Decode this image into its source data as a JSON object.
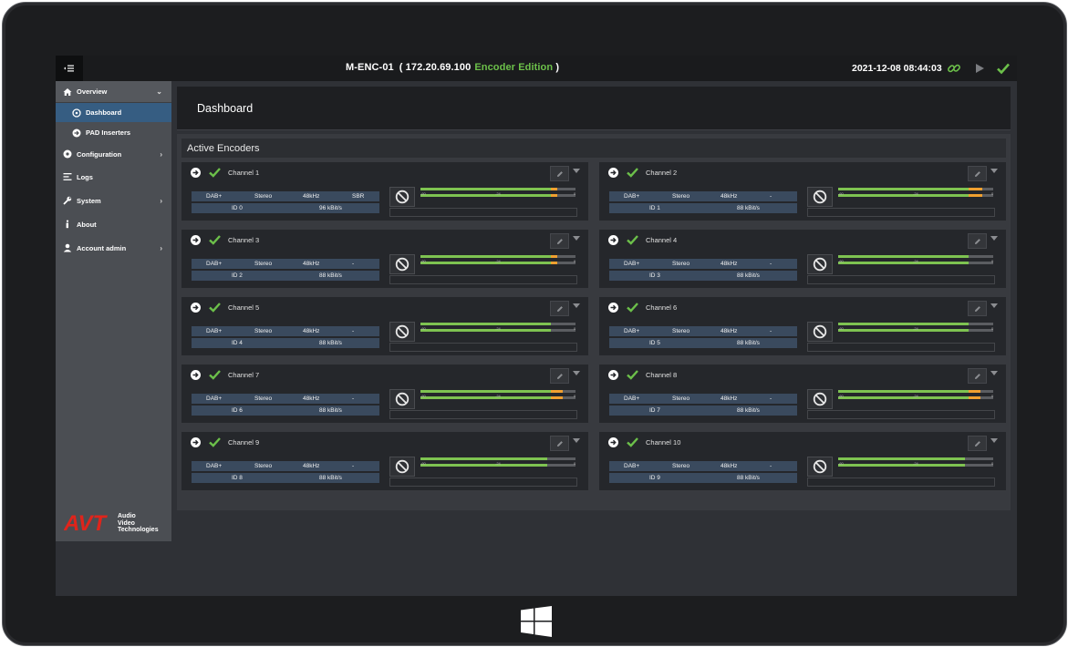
{
  "topbar": {
    "menu_icon": "menu-icon",
    "device_name": "M-ENC-01",
    "ip_open": "( 172.20.69.100",
    "edition": "Encoder Edition",
    "ip_close": ")",
    "datetime": "2021-12-08 08:44:03",
    "icons": [
      "link-icon",
      "play-icon",
      "check-icon"
    ],
    "accent": "#6cc04a"
  },
  "sidebar": {
    "items": [
      {
        "label": "Overview",
        "icon": "home-icon"
      },
      {
        "label": "Dashboard",
        "icon": "dashboard-icon"
      },
      {
        "label": "PAD Inserters",
        "icon": "arrow-circle-icon"
      },
      {
        "label": "Configuration",
        "icon": "gear-icon"
      },
      {
        "label": "Logs",
        "icon": "list-icon"
      },
      {
        "label": "System",
        "icon": "wrench-icon"
      },
      {
        "label": "About",
        "icon": "info-icon"
      },
      {
        "label": "Account admin",
        "icon": "user-icon"
      }
    ],
    "brand": {
      "logo": "AVT",
      "line1": "Audio",
      "line2": "Video",
      "line3": "Technologies",
      "color": "#e0241b"
    }
  },
  "dashboard": {
    "title": "Dashboard",
    "section_title": "Active Encoders"
  },
  "channels": [
    {
      "name": "Channel 1",
      "format": "DAB+",
      "mode": "Stereo",
      "rate": "48kHz",
      "extra": "SBR",
      "id": "ID 0",
      "bitrate": "96 kBit/s",
      "level": 0.88
    },
    {
      "name": "Channel 2",
      "format": "DAB+",
      "mode": "Stereo",
      "rate": "48kHz",
      "extra": "-",
      "id": "ID 1",
      "bitrate": "88 kBit/s",
      "level": 0.93
    },
    {
      "name": "Channel 3",
      "format": "DAB+",
      "mode": "Stereo",
      "rate": "48kHz",
      "extra": "-",
      "id": "ID 2",
      "bitrate": "88 kBit/s",
      "level": 0.88
    },
    {
      "name": "Channel 4",
      "format": "DAB+",
      "mode": "Stereo",
      "rate": "48kHz",
      "extra": "-",
      "id": "ID 3",
      "bitrate": "88 kBit/s",
      "level": 0.84
    },
    {
      "name": "Channel 5",
      "format": "DAB+",
      "mode": "Stereo",
      "rate": "48kHz",
      "extra": "-",
      "id": "ID 4",
      "bitrate": "88 kBit/s",
      "level": 0.84
    },
    {
      "name": "Channel 6",
      "format": "DAB+",
      "mode": "Stereo",
      "rate": "48kHz",
      "extra": "-",
      "id": "ID 5",
      "bitrate": "88 kBit/s",
      "level": 0.84
    },
    {
      "name": "Channel 7",
      "format": "DAB+",
      "mode": "Stereo",
      "rate": "48kHz",
      "extra": "-",
      "id": "ID 6",
      "bitrate": "88 kBit/s",
      "level": 0.92
    },
    {
      "name": "Channel 8",
      "format": "DAB+",
      "mode": "Stereo",
      "rate": "48kHz",
      "extra": "-",
      "id": "ID 7",
      "bitrate": "88 kBit/s",
      "level": 0.92
    },
    {
      "name": "Channel 9",
      "format": "DAB+",
      "mode": "Stereo",
      "rate": "48kHz",
      "extra": "-",
      "id": "ID 8",
      "bitrate": "88 kBit/s",
      "level": 0.82
    },
    {
      "name": "Channel 10",
      "format": "DAB+",
      "mode": "Stereo",
      "rate": "48kHz",
      "extra": "-",
      "id": "ID 9",
      "bitrate": "88 kBit/s",
      "level": 0.82
    }
  ],
  "meter_scale": {
    "low": "-60",
    "mid": "-24",
    "high": "0"
  },
  "colors": {
    "meter_green": "#7ec351",
    "meter_orange": "#f0a030",
    "ok_green": "#6cc04a",
    "active_nav": "#365d82"
  },
  "taskbar": {
    "windows_icon": "windows-logo-icon"
  }
}
